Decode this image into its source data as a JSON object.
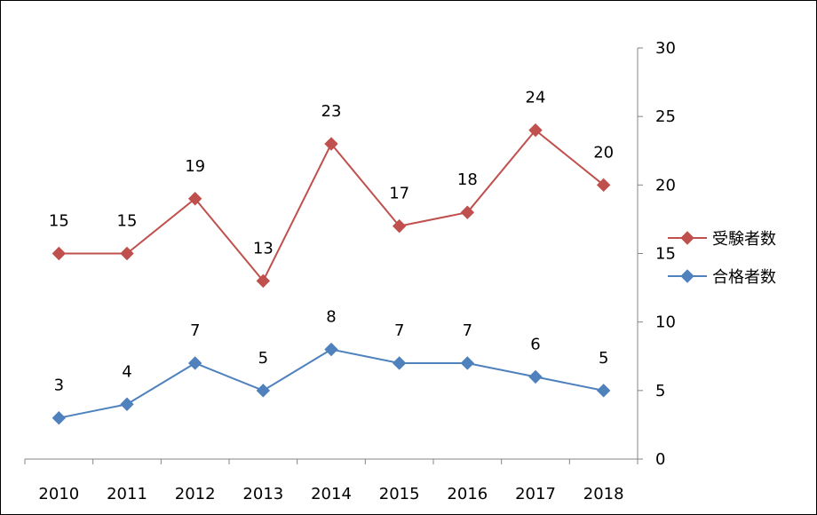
{
  "chart_data": {
    "type": "line",
    "categories": [
      "2010",
      "2011",
      "2012",
      "2013",
      "2014",
      "2015",
      "2016",
      "2017",
      "2018"
    ],
    "series": [
      {
        "name": "受験者数",
        "values": [
          15,
          15,
          19,
          13,
          23,
          17,
          18,
          24,
          20
        ],
        "color": "#C0504D",
        "marker": "diamond"
      },
      {
        "name": "合格者数",
        "values": [
          3,
          4,
          7,
          5,
          8,
          7,
          7,
          6,
          5
        ],
        "color": "#4F81BD",
        "marker": "diamond"
      }
    ],
    "y_axis": {
      "position": "right",
      "ylim": [
        0,
        30
      ],
      "ticks": [
        0,
        5,
        10,
        15,
        20,
        25,
        30
      ]
    },
    "data_labels": true,
    "legend": "right",
    "grid": false,
    "title": "",
    "xlabel": "",
    "ylabel": ""
  }
}
